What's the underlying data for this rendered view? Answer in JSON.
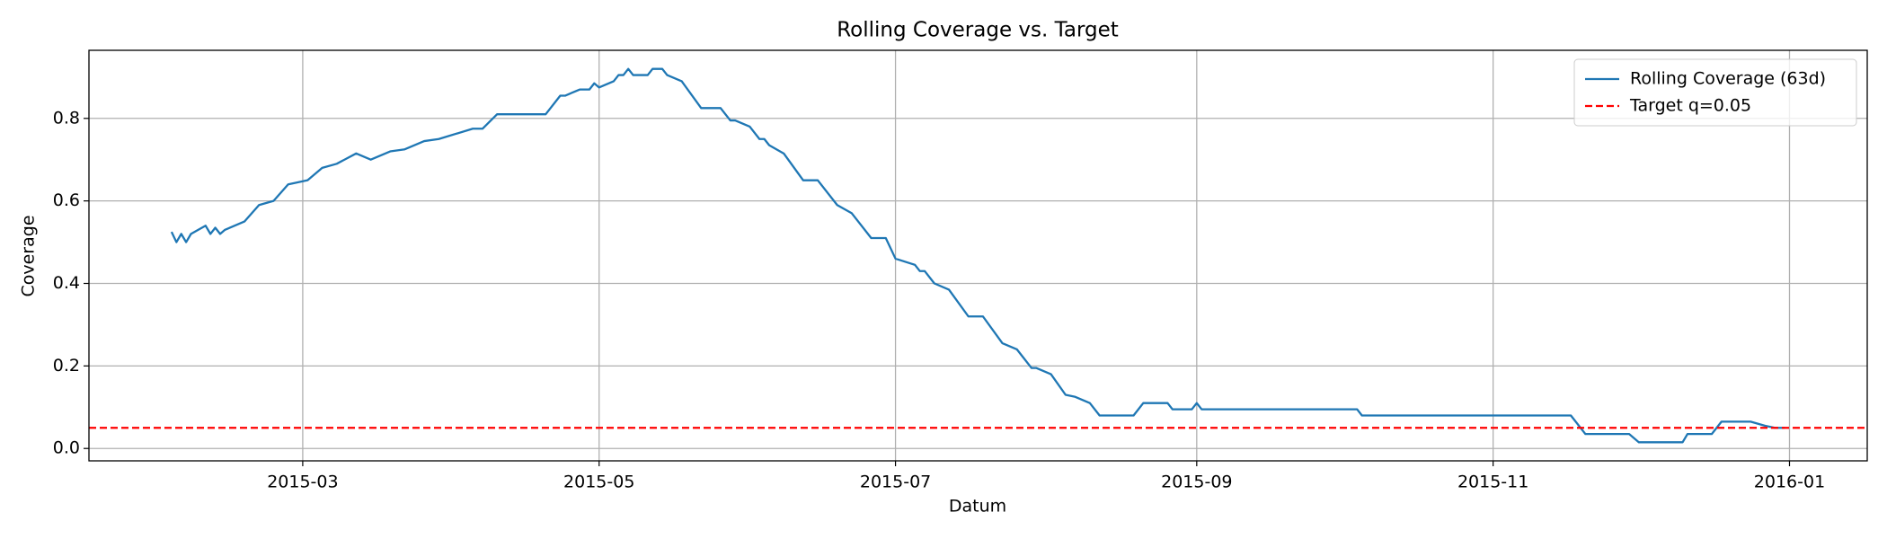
{
  "chart_data": {
    "type": "line",
    "title": "Rolling Coverage vs. Target",
    "xlabel": "Datum",
    "ylabel": "Coverage",
    "x": [
      "2015-02-02",
      "2015-02-03",
      "2015-02-04",
      "2015-02-05",
      "2015-02-06",
      "2015-02-09",
      "2015-02-10",
      "2015-02-11",
      "2015-02-12",
      "2015-02-13",
      "2015-02-17",
      "2015-02-20",
      "2015-02-23",
      "2015-02-26",
      "2015-03-02",
      "2015-03-05",
      "2015-03-08",
      "2015-03-12",
      "2015-03-15",
      "2015-03-19",
      "2015-03-22",
      "2015-03-26",
      "2015-03-29",
      "2015-04-05",
      "2015-04-07",
      "2015-04-10",
      "2015-04-20",
      "2015-04-23",
      "2015-04-24",
      "2015-04-27",
      "2015-04-29",
      "2015-04-30",
      "2015-05-01",
      "2015-05-04",
      "2015-05-05",
      "2015-05-06",
      "2015-05-07",
      "2015-05-08",
      "2015-05-11",
      "2015-05-12",
      "2015-05-14",
      "2015-05-15",
      "2015-05-18",
      "2015-05-22",
      "2015-05-26",
      "2015-05-28",
      "2015-05-29",
      "2015-06-01",
      "2015-06-03",
      "2015-06-04",
      "2015-06-05",
      "2015-06-08",
      "2015-06-12",
      "2015-06-15",
      "2015-06-19",
      "2015-06-22",
      "2015-06-26",
      "2015-06-29",
      "2015-07-01",
      "2015-07-05",
      "2015-07-06",
      "2015-07-07",
      "2015-07-09",
      "2015-07-12",
      "2015-07-16",
      "2015-07-19",
      "2015-07-23",
      "2015-07-26",
      "2015-07-29",
      "2015-07-30",
      "2015-08-02",
      "2015-08-05",
      "2015-08-07",
      "2015-08-10",
      "2015-08-12",
      "2015-08-19",
      "2015-08-21",
      "2015-08-26",
      "2015-08-27",
      "2015-08-31",
      "2015-09-01",
      "2015-09-02",
      "2015-10-04",
      "2015-10-05",
      "2015-11-17",
      "2015-11-20",
      "2015-11-29",
      "2015-12-01",
      "2015-12-10",
      "2015-12-11",
      "2015-12-16",
      "2015-12-18",
      "2015-12-24",
      "2015-12-27",
      "2015-12-29",
      "2015-12-31"
    ],
    "series": [
      {
        "name": "Rolling Coverage (63d)",
        "color": "#1f77b4",
        "values": [
          0.525,
          0.5,
          0.52,
          0.5,
          0.52,
          0.54,
          0.52,
          0.535,
          0.52,
          0.53,
          0.55,
          0.59,
          0.6,
          0.64,
          0.65,
          0.68,
          0.69,
          0.715,
          0.7,
          0.72,
          0.725,
          0.745,
          0.75,
          0.775,
          0.775,
          0.81,
          0.81,
          0.855,
          0.855,
          0.87,
          0.87,
          0.885,
          0.875,
          0.89,
          0.905,
          0.905,
          0.92,
          0.905,
          0.905,
          0.92,
          0.92,
          0.905,
          0.89,
          0.825,
          0.825,
          0.795,
          0.795,
          0.78,
          0.75,
          0.75,
          0.735,
          0.715,
          0.65,
          0.65,
          0.59,
          0.57,
          0.51,
          0.51,
          0.46,
          0.445,
          0.43,
          0.43,
          0.4,
          0.385,
          0.32,
          0.32,
          0.255,
          0.24,
          0.195,
          0.195,
          0.18,
          0.13,
          0.125,
          0.11,
          0.08,
          0.08,
          0.11,
          0.11,
          0.095,
          0.095,
          0.11,
          0.095,
          0.095,
          0.08,
          0.08,
          0.035,
          0.035,
          0.015,
          0.015,
          0.035,
          0.035,
          0.065,
          0.065,
          0.055,
          0.05,
          0.05
        ]
      }
    ],
    "hlines": [
      {
        "name": "Target q=0.05",
        "value": 0.05,
        "color": "#ff0000",
        "dashed": true
      }
    ],
    "xlim": [
      "2015-01-16",
      "2016-01-17"
    ],
    "xticks": [
      {
        "value": "2015-03-01",
        "label": "2015-03"
      },
      {
        "value": "2015-05-01",
        "label": "2015-05"
      },
      {
        "value": "2015-07-01",
        "label": "2015-07"
      },
      {
        "value": "2015-09-01",
        "label": "2015-09"
      },
      {
        "value": "2015-11-01",
        "label": "2015-11"
      },
      {
        "value": "2016-01-01",
        "label": "2016-01"
      }
    ],
    "ylim": [
      -0.03,
      0.965
    ],
    "yticks": [
      {
        "value": 0,
        "label": "0.0"
      },
      0.2,
      0.4,
      0.6,
      0.8
    ],
    "grid": true,
    "legend": "upper right"
  }
}
